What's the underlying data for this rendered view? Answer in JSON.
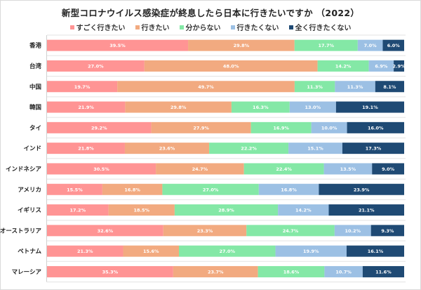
{
  "chart_data": {
    "type": "bar",
    "orientation": "horizontal",
    "stacked": true,
    "title": "新型コロナウイルス感染症が終息したら日本に行きたいですか （2022）",
    "xlabel": "",
    "ylabel": "",
    "xlim": [
      0,
      100
    ],
    "grid": true,
    "legend_position": "top",
    "categories": [
      "香港",
      "台湾",
      "中国",
      "韓国",
      "タイ",
      "インド",
      "インドネシア",
      "アメリカ",
      "イギリス",
      "オーストラリア",
      "ベトナム",
      "マレーシア"
    ],
    "series": [
      {
        "name": "すごく行きたい",
        "color": "#ff9494",
        "values": [
          39.5,
          27.0,
          19.7,
          21.9,
          29.2,
          21.8,
          30.5,
          15.5,
          17.2,
          32.6,
          21.3,
          35.3
        ]
      },
      {
        "name": "行きたい",
        "color": "#f2aa80",
        "values": [
          29.8,
          48.0,
          49.7,
          29.8,
          27.9,
          23.6,
          24.7,
          16.8,
          18.5,
          23.3,
          15.6,
          23.7
        ]
      },
      {
        "name": "分からない",
        "color": "#84e8a6",
        "values": [
          17.7,
          14.2,
          11.3,
          16.3,
          16.9,
          22.2,
          22.4,
          27.0,
          28.9,
          24.7,
          27.0,
          18.6
        ]
      },
      {
        "name": "行きたくない",
        "color": "#9cc0e4",
        "values": [
          7.0,
          6.9,
          11.3,
          13.0,
          10.0,
          15.1,
          13.5,
          16.8,
          14.2,
          10.2,
          19.9,
          10.7
        ]
      },
      {
        "name": "全く行きたくない",
        "color": "#1f4a74",
        "values": [
          6.0,
          2.9,
          8.1,
          19.1,
          16.0,
          17.3,
          9.0,
          23.9,
          21.1,
          9.3,
          16.1,
          11.6
        ]
      }
    ],
    "value_suffix": "%"
  }
}
